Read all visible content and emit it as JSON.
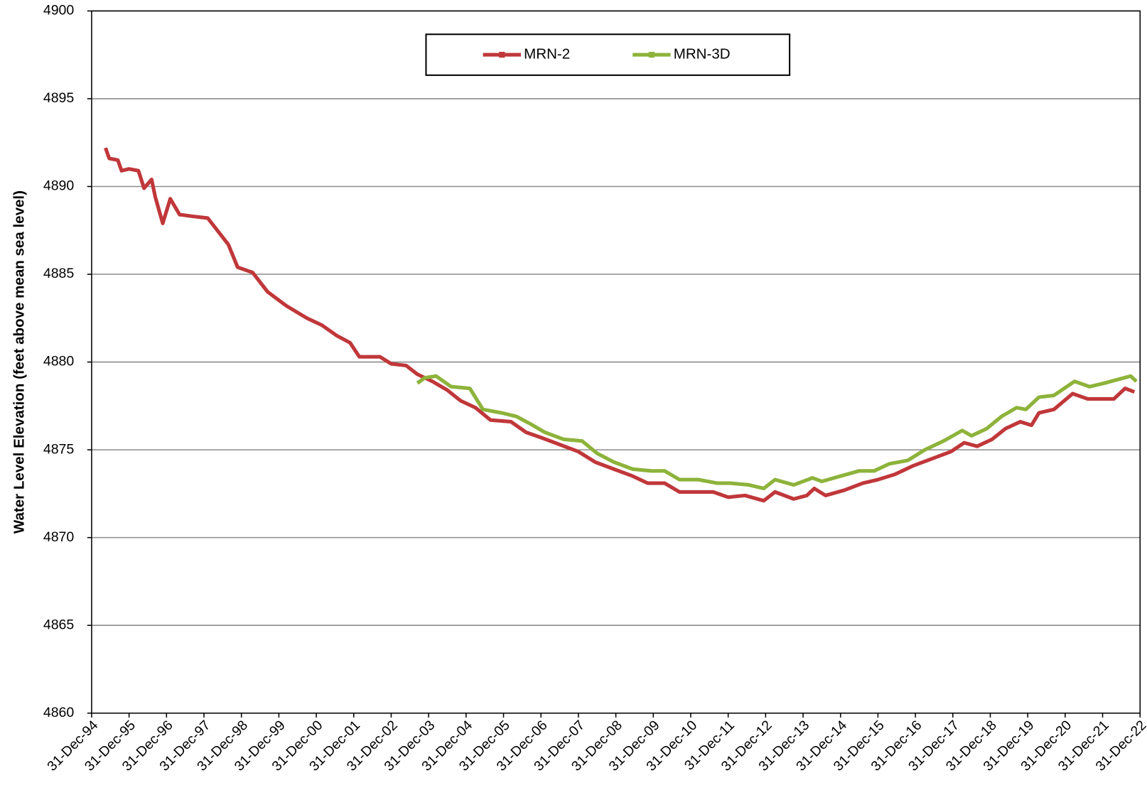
{
  "chart_data": {
    "type": "line",
    "y_label": "Water Level Elevation (feet above mean sea level)",
    "xlim": [
      1995,
      2023
    ],
    "xticks": [
      {
        "value": 1995,
        "label": "31-Dec-94"
      },
      {
        "value": 1996,
        "label": "31-Dec-95"
      },
      {
        "value": 1997,
        "label": "31-Dec-96"
      },
      {
        "value": 1998,
        "label": "31-Dec-97"
      },
      {
        "value": 1999,
        "label": "31-Dec-98"
      },
      {
        "value": 2000,
        "label": "31-Dec-99"
      },
      {
        "value": 2001,
        "label": "31-Dec-00"
      },
      {
        "value": 2002,
        "label": "31-Dec-01"
      },
      {
        "value": 2003,
        "label": "31-Dec-02"
      },
      {
        "value": 2004,
        "label": "31-Dec-03"
      },
      {
        "value": 2005,
        "label": "31-Dec-04"
      },
      {
        "value": 2006,
        "label": "31-Dec-05"
      },
      {
        "value": 2007,
        "label": "31-Dec-06"
      },
      {
        "value": 2008,
        "label": "31-Dec-07"
      },
      {
        "value": 2009,
        "label": "31-Dec-08"
      },
      {
        "value": 2010,
        "label": "31-Dec-09"
      },
      {
        "value": 2011,
        "label": "31-Dec-10"
      },
      {
        "value": 2012,
        "label": "31-Dec-11"
      },
      {
        "value": 2013,
        "label": "31-Dec-12"
      },
      {
        "value": 2014,
        "label": "31-Dec-13"
      },
      {
        "value": 2015,
        "label": "31-Dec-14"
      },
      {
        "value": 2016,
        "label": "31-Dec-15"
      },
      {
        "value": 2017,
        "label": "31-Dec-16"
      },
      {
        "value": 2018,
        "label": "31-Dec-17"
      },
      {
        "value": 2019,
        "label": "31-Dec-18"
      },
      {
        "value": 2020,
        "label": "31-Dec-19"
      },
      {
        "value": 2021,
        "label": "31-Dec-20"
      },
      {
        "value": 2022,
        "label": "31-Dec-21"
      },
      {
        "value": 2023,
        "label": "31-Dec-22"
      }
    ],
    "ylim": [
      4860,
      4900
    ],
    "yticks": [
      4860,
      4865,
      4870,
      4875,
      4880,
      4885,
      4890,
      4895,
      4900
    ],
    "grid": true,
    "legend": "top",
    "series": [
      {
        "name": "MRN-2",
        "color": "#c0373a",
        "x": [
          1995.37,
          1995.47,
          1995.7,
          1995.8,
          1996.0,
          1996.25,
          1996.4,
          1996.6,
          1996.7,
          1996.9,
          1997.1,
          1997.35,
          1997.7,
          1998.1,
          1998.65,
          1998.9,
          1999.3,
          1999.7,
          2000.2,
          2000.75,
          2001.15,
          2001.55,
          2001.9,
          2002.15,
          2002.45,
          2002.7,
          2003.0,
          2003.4,
          2003.7,
          2004.1,
          2004.5,
          2004.85,
          2005.25,
          2005.65,
          2006.2,
          2006.6,
          2007.0,
          2007.5,
          2008.0,
          2008.45,
          2008.95,
          2009.45,
          2009.85,
          2010.3,
          2010.7,
          2011.1,
          2011.6,
          2012.0,
          2012.45,
          2012.95,
          2013.25,
          2013.75,
          2014.1,
          2014.3,
          2014.6,
          2015.1,
          2015.6,
          2016.0,
          2016.45,
          2016.95,
          2017.45,
          2017.95,
          2018.3,
          2018.65,
          2019.05,
          2019.4,
          2019.8,
          2020.1,
          2020.3,
          2020.7,
          2021.2,
          2021.6,
          2022.0,
          2022.3,
          2022.6,
          2022.85
        ],
        "values": [
          4892.2,
          4891.6,
          4891.5,
          4890.9,
          4891.0,
          4890.9,
          4889.9,
          4890.4,
          4889.4,
          4887.9,
          4889.3,
          4888.4,
          4888.3,
          4888.2,
          4886.7,
          4885.4,
          4885.1,
          4884.0,
          4883.2,
          4882.5,
          4882.1,
          4881.5,
          4881.1,
          4880.3,
          4880.3,
          4880.3,
          4879.9,
          4879.8,
          4879.3,
          4878.9,
          4878.4,
          4877.8,
          4877.4,
          4876.7,
          4876.6,
          4876.0,
          4875.7,
          4875.3,
          4874.9,
          4874.3,
          4873.9,
          4873.5,
          4873.1,
          4873.1,
          4872.6,
          4872.6,
          4872.6,
          4872.3,
          4872.4,
          4872.1,
          4872.6,
          4872.2,
          4872.4,
          4872.8,
          4872.4,
          4872.7,
          4873.1,
          4873.3,
          4873.6,
          4874.1,
          4874.5,
          4874.9,
          4875.4,
          4875.2,
          4875.6,
          4876.2,
          4876.6,
          4876.4,
          4877.1,
          4877.3,
          4878.2,
          4877.9,
          4877.9,
          4877.9,
          4878.5,
          4878.3
        ]
      },
      {
        "name": "MRN-3D",
        "color": "#8db33a",
        "x": [
          2003.7,
          2003.9,
          2004.2,
          2004.6,
          2005.1,
          2005.45,
          2005.95,
          2006.35,
          2006.7,
          2007.1,
          2007.6,
          2008.1,
          2008.5,
          2008.95,
          2009.45,
          2009.95,
          2010.3,
          2010.7,
          2011.2,
          2011.7,
          2012.05,
          2012.55,
          2012.95,
          2013.25,
          2013.75,
          2014.25,
          2014.5,
          2015.0,
          2015.5,
          2015.9,
          2016.3,
          2016.8,
          2017.25,
          2017.75,
          2018.25,
          2018.5,
          2018.9,
          2019.3,
          2019.7,
          2019.95,
          2020.3,
          2020.7,
          2021.25,
          2021.65,
          2022.05,
          2022.4,
          2022.75,
          2022.9
        ],
        "values": [
          4878.8,
          4879.1,
          4879.2,
          4878.6,
          4878.5,
          4877.3,
          4877.1,
          4876.9,
          4876.5,
          4876.0,
          4875.6,
          4875.5,
          4874.8,
          4874.3,
          4873.9,
          4873.8,
          4873.8,
          4873.3,
          4873.3,
          4873.1,
          4873.1,
          4873.0,
          4872.8,
          4873.3,
          4873.0,
          4873.4,
          4873.2,
          4873.5,
          4873.8,
          4873.8,
          4874.2,
          4874.4,
          4875.0,
          4875.5,
          4876.1,
          4875.8,
          4876.2,
          4876.9,
          4877.4,
          4877.3,
          4878.0,
          4878.1,
          4878.9,
          4878.6,
          4878.8,
          4879.0,
          4879.2,
          4878.9
        ]
      }
    ]
  }
}
